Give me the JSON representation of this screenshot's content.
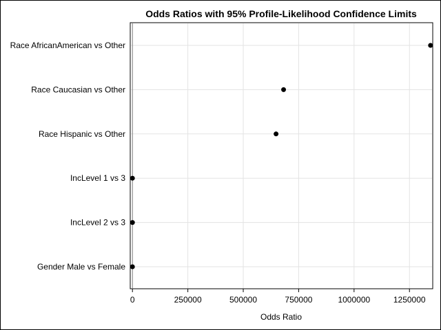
{
  "chart_data": {
    "type": "scatter",
    "title": "Odds Ratios with 95% Profile-Likelihood Confidence Limits",
    "xlabel": "Odds Ratio",
    "ylabel": "",
    "categories": [
      "Race AfricanAmerican vs Other",
      "Race Caucasian vs Other",
      "Race Hispanic vs Other",
      "IncLevel 1 vs 3",
      "IncLevel 2 vs 3",
      "Gender Male vs Female"
    ],
    "values": [
      1345000,
      682000,
      648000,
      0,
      0,
      0
    ],
    "xlim": [
      -10000,
      1355000
    ],
    "xticks": [
      0,
      250000,
      500000,
      750000,
      1000000,
      1250000
    ],
    "xtick_labels": [
      "0",
      "250000",
      "500000",
      "750000",
      "1000000",
      "1250000"
    ],
    "reference_line": 1,
    "grid": true,
    "colors": {
      "marker": "#000000",
      "grid": "#e3e3e3",
      "axis": "#000000",
      "ref_line": "#808080"
    }
  }
}
